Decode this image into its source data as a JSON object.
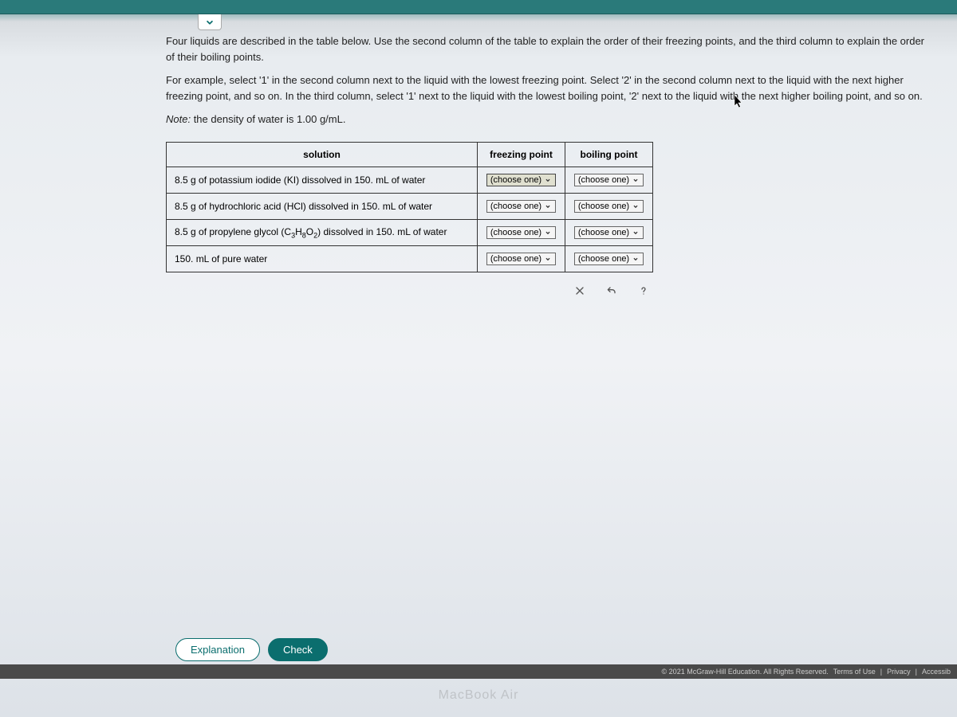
{
  "instructions": {
    "p1": "Four liquids are described in the table below. Use the second column of the table to explain the order of their freezing points, and the third column to explain the order of their boiling points.",
    "p2": "For example, select '1' in the second column next to the liquid with the lowest freezing point. Select '2' in the second column next to the liquid with the next higher freezing point, and so on. In the third column, select '1' next to the liquid with the lowest boiling point, '2' next to the liquid with the next higher boiling point, and so on.",
    "note_prefix": "Note:",
    "note_text": " the density of water is 1.00 g/mL."
  },
  "table": {
    "headers": {
      "solution": "solution",
      "fp": "freezing point",
      "bp": "boiling point"
    },
    "rows": [
      {
        "solution_html": "8.5 g of potassium iodide (KI) dissolved in 150. mL of water",
        "fp": "(choose one)",
        "bp": "(choose one)"
      },
      {
        "solution_html": "8.5 g of hydrochloric acid (HCl) dissolved in 150. mL of water",
        "fp": "(choose one)",
        "bp": "(choose one)"
      },
      {
        "solution_html": "8.5 g of propylene glycol (C<sub>3</sub>H<sub>8</sub>O<sub>2</sub>) dissolved in 150. mL of water",
        "fp": "(choose one)",
        "bp": "(choose one)"
      },
      {
        "solution_html": "150. mL of pure water",
        "fp": "(choose one)",
        "bp": "(choose one)"
      }
    ]
  },
  "buttons": {
    "explanation": "Explanation",
    "check": "Check"
  },
  "footer": {
    "copyright": "© 2021 McGraw-Hill Education. All Rights Reserved.",
    "terms": "Terms of Use",
    "privacy": "Privacy",
    "access": "Accessib"
  },
  "device": "MacBook Air"
}
